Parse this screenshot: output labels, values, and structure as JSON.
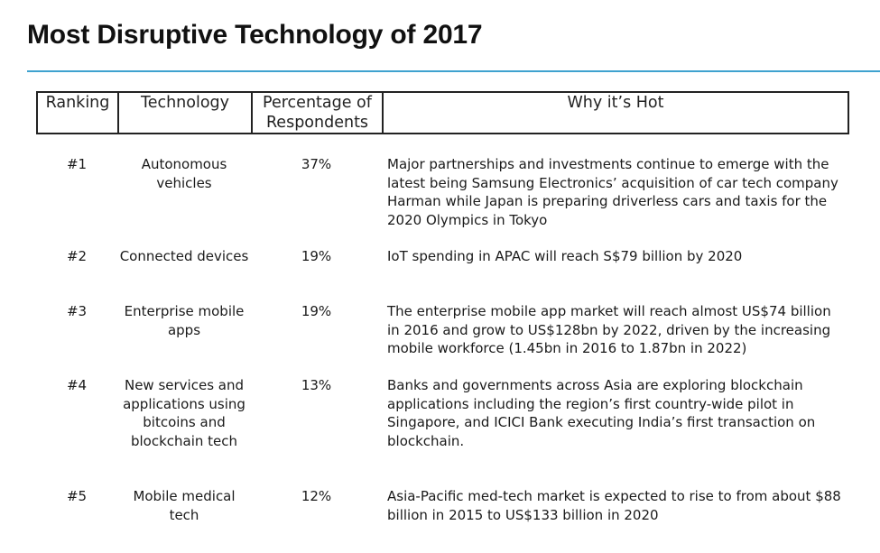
{
  "title": "Most Disruptive Technology of 2017",
  "table": {
    "headers": {
      "ranking": "Ranking",
      "technology": "Technology",
      "percentage": "Percentage of Respondents",
      "why": "Why it’s Hot"
    },
    "rows": [
      {
        "rank": "#1",
        "technology": "Autonomous vehicles",
        "percentage": "37%",
        "why": "Major partnerships and investments continue to emerge with the latest being Samsung Electronics’ acquisition of car tech company Harman while Japan is preparing driverless cars and taxis for the 2020 Olympics in Tokyo"
      },
      {
        "rank": "#2",
        "technology": "Connected devices",
        "percentage": "19%",
        "why": "IoT spending in APAC will reach S$79 billion by 2020"
      },
      {
        "rank": "#3",
        "technology": "Enterprise mobile apps",
        "percentage": "19%",
        "why": "The enterprise mobile app market will reach almost US$74 billion in 2016 and grow to US$128bn by 2022, driven by the increasing mobile workforce (1.45bn in 2016 to 1.87bn in 2022)"
      },
      {
        "rank": "#4",
        "technology": "New services and applications using bitcoins and blockchain tech",
        "percentage": "13%",
        "why": "Banks and governments across Asia are exploring blockchain applications including the region’s first country-wide pilot in Singapore, and ICICI Bank executing India’s first transaction on blockchain."
      },
      {
        "rank": "#5",
        "technology": "Mobile medical tech",
        "percentage": "12%",
        "why": "Asia-Pacific med-tech market is expected to rise to from about $88 billion in 2015 to US$133 billion in 2020"
      }
    ]
  },
  "colors": {
    "title_rule": "#3fa2cf",
    "table_border": "#222222",
    "text": "#1a1a1a"
  }
}
